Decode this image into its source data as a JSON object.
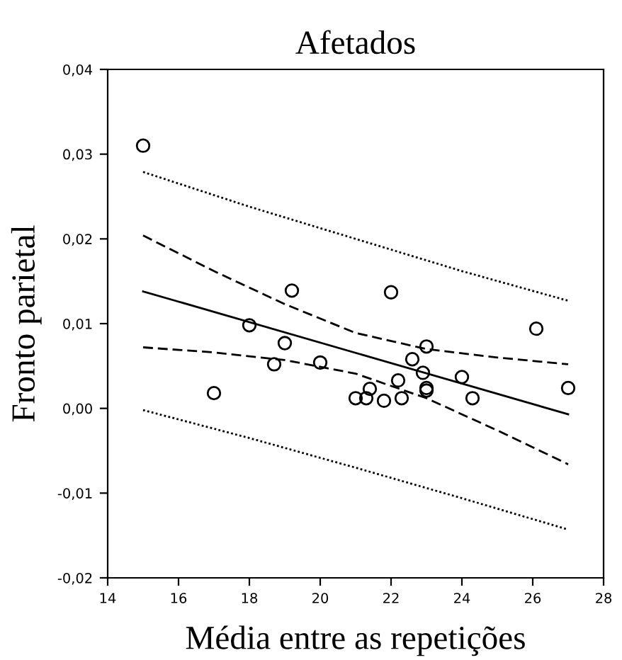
{
  "chart_data": {
    "type": "scatter",
    "title": "Afetados",
    "xlabel": "Média entre as repetições",
    "ylabel": "Fronto parietal",
    "xlim": [
      14,
      28
    ],
    "xticks": [
      14,
      16,
      18,
      20,
      22,
      24,
      26,
      28
    ],
    "ylim": [
      -0.02,
      0.04
    ],
    "yticks": [
      {
        "value": -0.02,
        "label": "-0,02"
      },
      {
        "value": -0.01,
        "label": "-0,01"
      },
      {
        "value": 0,
        "label": "0,00"
      },
      {
        "value": 0.01,
        "label": "0,01"
      },
      {
        "value": 0.02,
        "label": "0,02"
      },
      {
        "value": 0.03,
        "label": "0,03"
      },
      {
        "value": 0.04,
        "label": "0,04"
      }
    ],
    "grid": false,
    "legend": false,
    "series": [
      {
        "color": "#000000",
        "marker": "circle",
        "x": [
          15,
          17,
          18,
          18.7,
          19,
          19.2,
          20,
          21,
          21.3,
          21.4,
          21.8,
          22,
          22.2,
          22.3,
          22.6,
          22.9,
          23,
          23,
          23,
          24,
          24.3,
          26.1,
          27
        ],
        "values": [
          0.031,
          0.0018,
          0.0098,
          0.0052,
          0.0077,
          0.0139,
          0.0054,
          0.0012,
          0.0012,
          0.0023,
          0.0009,
          0.0137,
          0.0033,
          0.0012,
          0.0058,
          0.0042,
          0.0073,
          0.0024,
          0.0021,
          0.0037,
          0.0012,
          0.0094,
          0.0024
        ]
      },
      {
        "type": "line",
        "color": "#000000",
        "line_style": "solid",
        "x": [
          15,
          27
        ],
        "values": [
          0.0138,
          -0.0007
        ]
      },
      {
        "type": "line",
        "color": "#000000",
        "line_style": "dashed",
        "x": [
          15,
          17,
          19,
          21,
          23,
          25,
          27
        ],
        "values": [
          0.0204,
          0.0162,
          0.0123,
          0.0089,
          0.007,
          0.006,
          0.0052
        ]
      },
      {
        "type": "line",
        "color": "#000000",
        "line_style": "dashed",
        "x": [
          15,
          17,
          19,
          21,
          23,
          25,
          27
        ],
        "values": [
          0.0072,
          0.0066,
          0.0057,
          0.0041,
          0.0012,
          -0.0026,
          -0.0066
        ]
      },
      {
        "type": "line",
        "color": "#000000",
        "line_style": "dotted",
        "x": [
          15,
          18,
          21,
          24,
          27
        ],
        "values": [
          0.0279,
          0.0238,
          0.02,
          0.0162,
          0.0127
        ]
      },
      {
        "type": "line",
        "color": "#000000",
        "line_style": "dotted",
        "x": [
          15,
          18,
          21,
          24,
          27
        ],
        "values": [
          -0.0002,
          -0.0035,
          -0.007,
          -0.0106,
          -0.0143
        ]
      }
    ]
  }
}
